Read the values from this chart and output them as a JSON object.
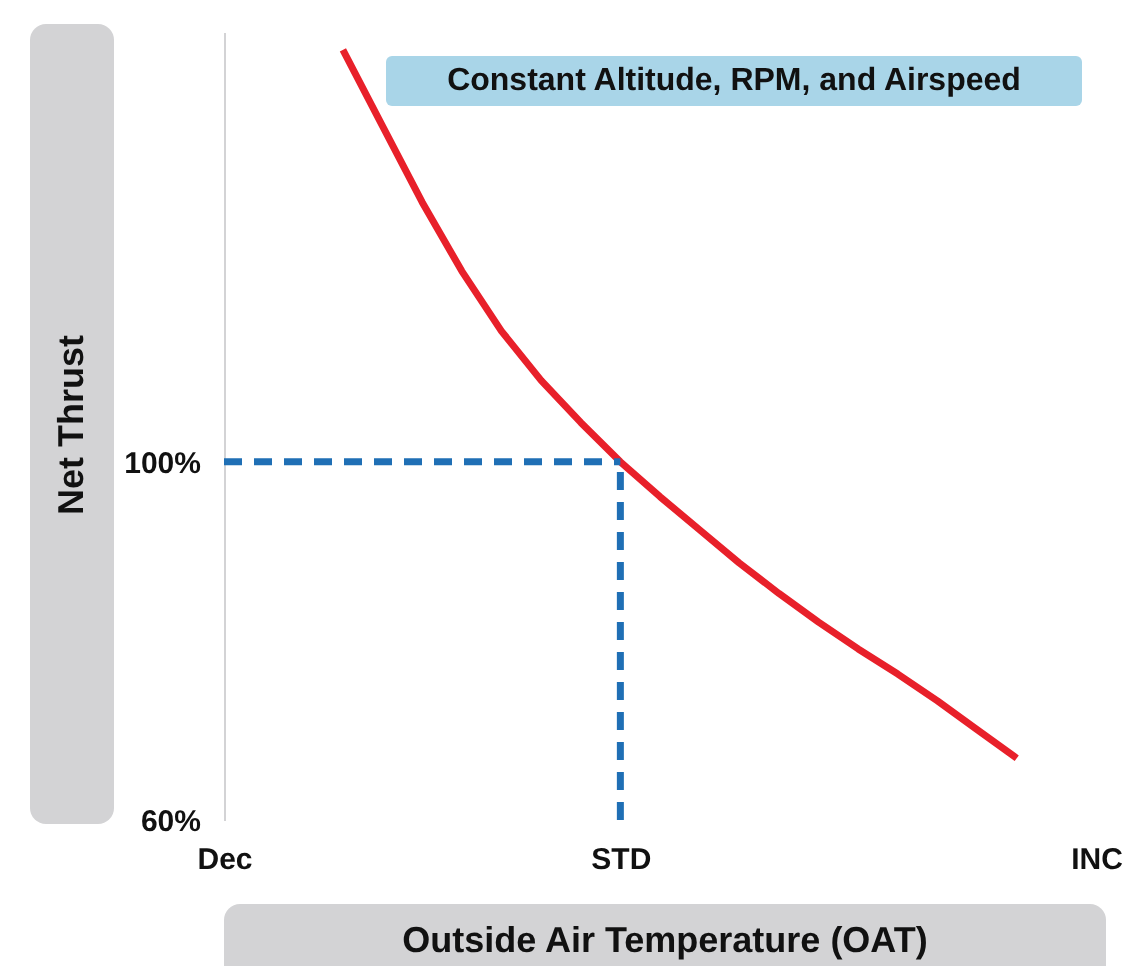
{
  "chart_data": {
    "type": "line",
    "title": "Constant Altitude, RPM, and Airspeed",
    "xlabel": "Outside Air Temperature (OAT)",
    "ylabel": "Net Thrust",
    "categories": [
      "Dec",
      null,
      null,
      null,
      null,
      null,
      null,
      null,
      null,
      null,
      "STD",
      null,
      null,
      null,
      null,
      null,
      null,
      null,
      null,
      null,
      null,
      null,
      "INC"
    ],
    "ylim": [
      60,
      148
    ],
    "yticks": [
      {
        "value": 60,
        "label": "60%"
      },
      {
        "value": 100,
        "label": "100%"
      }
    ],
    "grid": false,
    "marker": "none",
    "series": [
      {
        "color": "#e8202a",
        "line_style": "solid",
        "values": [
          null,
          null,
          null,
          146,
          137.5,
          129,
          121.3,
          114.6,
          109.1,
          104.4,
          100,
          96.1,
          92.4,
          88.7,
          85.3,
          82.1,
          79.1,
          76.3,
          73.3,
          70.1,
          66.9,
          null,
          null
        ]
      },
      {
        "color": "#1f6fb5",
        "line_style": "dashed",
        "values": [
          100,
          100,
          100,
          100,
          100,
          100,
          100,
          100,
          100,
          100,
          100,
          null,
          null,
          null,
          null,
          null,
          null,
          null,
          null,
          null,
          null,
          null,
          null
        ]
      }
    ],
    "ref_lines": [
      {
        "axis": "x",
        "value": "STD",
        "color": "#1f6fb5",
        "line_style": "dashed"
      }
    ]
  }
}
